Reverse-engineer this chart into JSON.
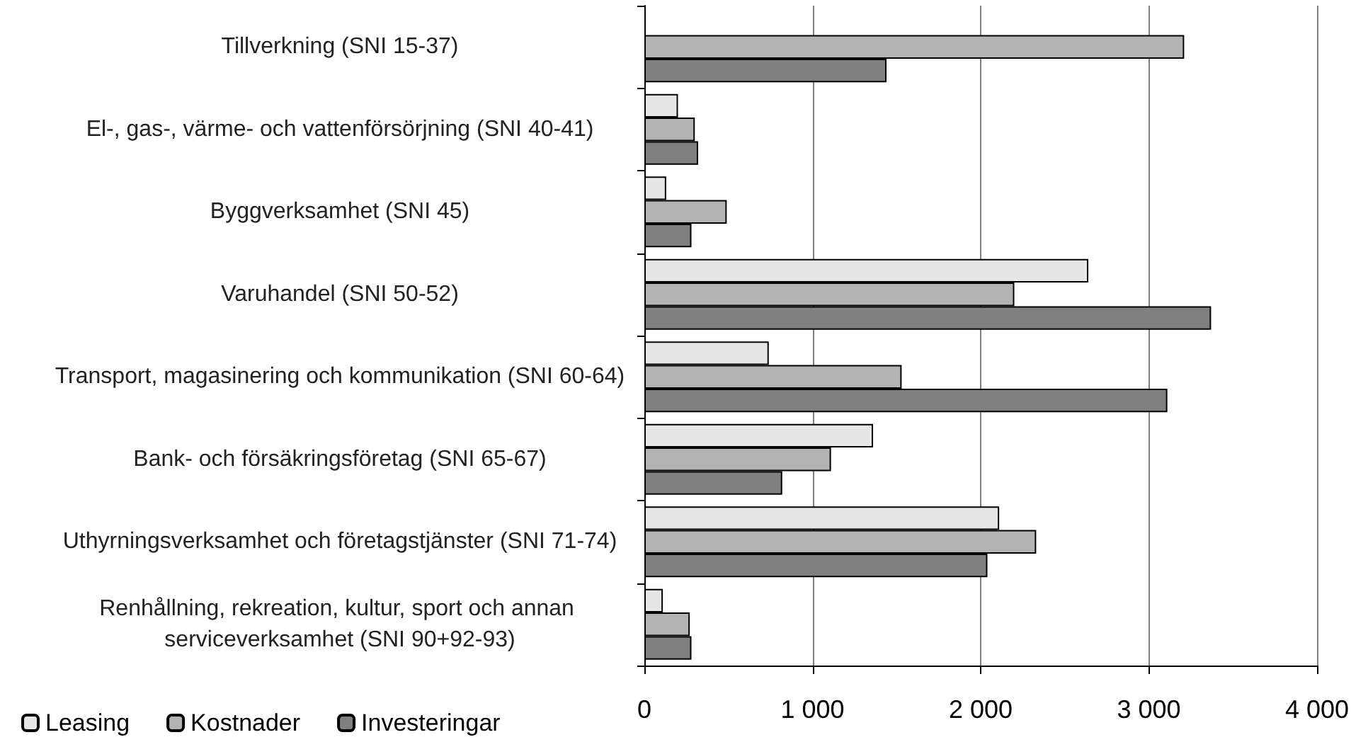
{
  "chart_data": {
    "type": "bar",
    "orientation": "horizontal",
    "categories": [
      "Tillverkning (SNI 15-37)",
      "El-, gas-, värme- och vattenförsörjning (SNI 40-41)",
      "Byggverksamhet (SNI 45)",
      "Varuhandel (SNI 50-52)",
      "Transport, magasinering och kommunikation (SNI 60-64)",
      "Bank- och försäkringsföretag (SNI 65-67)",
      "Uthyrningsverksamhet och företagstjänster (SNI 71-74)",
      "Renhållning, rekreation, kultur, sport och annan serviceverksamhet (SNI 90+92-93)"
    ],
    "series": [
      {
        "name": "Leasing",
        "color": "#e6e6e6",
        "values": [
          null,
          200,
          130,
          2640,
          740,
          1360,
          2110,
          110
        ]
      },
      {
        "name": "Kostnader",
        "color": "#b3b3b3",
        "values": [
          3210,
          300,
          490,
          2200,
          1530,
          1110,
          2330,
          270
        ]
      },
      {
        "name": "Investeringar",
        "color": "#808080",
        "values": [
          1440,
          320,
          280,
          3370,
          3110,
          820,
          2040,
          280
        ]
      }
    ],
    "xlim": [
      0,
      4000
    ],
    "xticks": [
      0,
      {
        "value": 1000,
        "label": "1 000"
      },
      {
        "value": 2000,
        "label": "2 000"
      },
      {
        "value": 3000,
        "label": "3 000"
      },
      {
        "value": 4000,
        "label": "4 000"
      }
    ],
    "grid": "x",
    "legend": "bottom left"
  }
}
